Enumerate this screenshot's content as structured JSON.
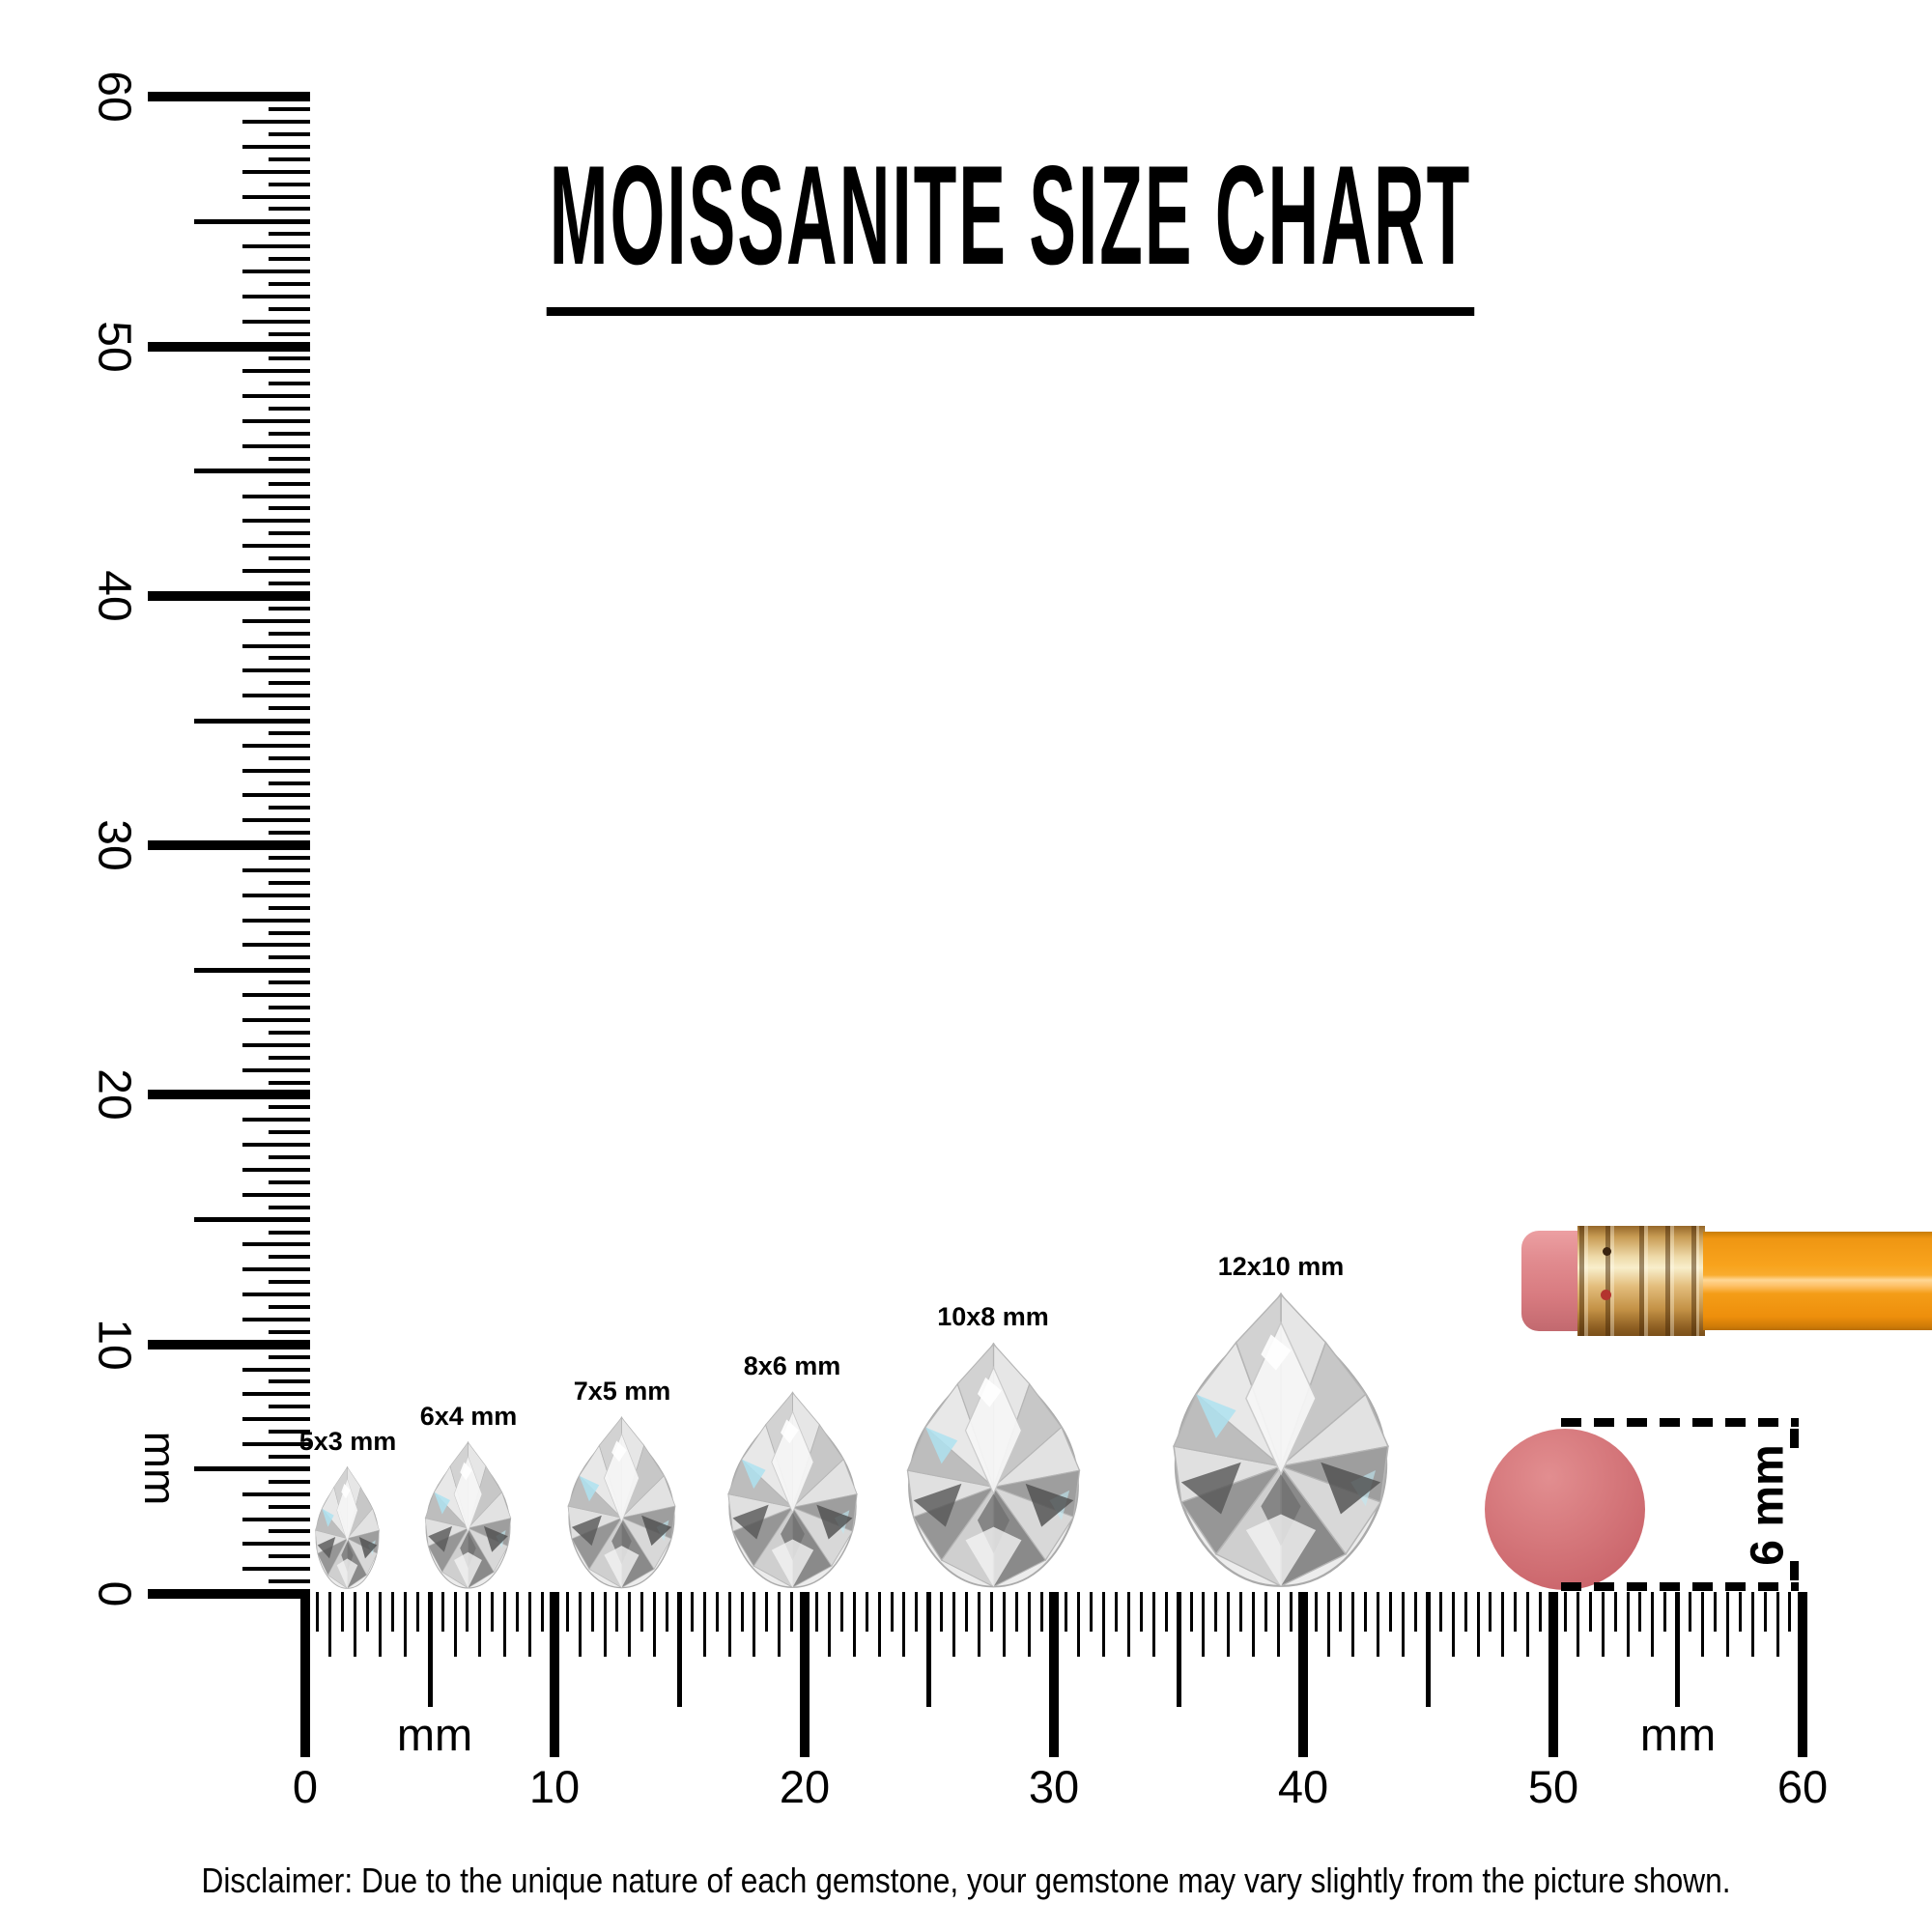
{
  "title": "MOISSANITE SIZE CHART",
  "rulers": {
    "unit": "mm",
    "left": {
      "labels": [
        "0",
        "10",
        "20",
        "30",
        "40",
        "50",
        "60"
      ]
    },
    "bottom": {
      "labels": [
        "0",
        "10",
        "20",
        "30",
        "40",
        "50",
        "60"
      ]
    }
  },
  "gems": [
    {
      "label": "5x3 mm",
      "height_mm": 5,
      "width_mm": 3
    },
    {
      "label": "6x4 mm",
      "height_mm": 6,
      "width_mm": 4
    },
    {
      "label": "7x5 mm",
      "height_mm": 7,
      "width_mm": 5
    },
    {
      "label": "8x6 mm",
      "height_mm": 8,
      "width_mm": 6
    },
    {
      "label": "10x8 mm",
      "height_mm": 10,
      "width_mm": 8
    },
    {
      "label": "12x10 mm",
      "height_mm": 12,
      "width_mm": 10
    }
  ],
  "eraser_dimension_label": "6 mm",
  "disclaimer": "Disclaimer: Due to the unique nature of each gemstone, your gemstone may vary slightly from the picture shown.",
  "colors": {
    "ink": "#000000",
    "pencil_body": "#f7a11f",
    "pencil_ferrule": "#d9a85e",
    "pencil_eraser": "#df8589",
    "eraser_circle": "#d4686c"
  }
}
